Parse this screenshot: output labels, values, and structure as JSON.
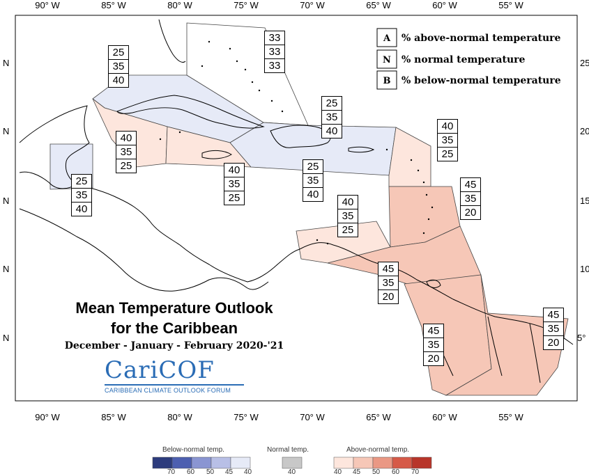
{
  "map": {
    "top_longitude_labels": [
      "90° W",
      "85° W",
      "80° W",
      "75° W",
      "70° W",
      "65° W",
      "60° W",
      "55° W"
    ],
    "bottom_longitude_labels": [
      "90° W",
      "85° W",
      "80° W",
      "75° W",
      "70° W",
      "65° W",
      "60° W",
      "55° W"
    ],
    "left_latitude_labels": [
      "N",
      "N",
      "N",
      "N",
      "N"
    ],
    "right_latitude_labels": [
      "25",
      "20",
      "15",
      "10",
      "5°"
    ]
  },
  "key": {
    "a_letter": "A",
    "a_text": "% above-normal temperature",
    "n_letter": "N",
    "n_text": "% normal temperature",
    "b_letter": "B",
    "b_text": "% below-normal temperature"
  },
  "colors": {
    "below_45_40": "#e6eaf7",
    "above_40_45": "#fde6dd",
    "above_45_50": "#f6c7b7",
    "above_50_60": "#ea9884",
    "above_60_70": "#d65a48",
    "above_70": "#b8352a",
    "below_70": "#2d3c7d",
    "below_60": "#4d5fb0",
    "below_50": "#8a95d2",
    "below_45": "#b8bfe6",
    "normal": "#c8c8c8"
  },
  "regions": [
    {
      "name": "bahamas",
      "a": "33",
      "n": "33",
      "b": "33"
    },
    {
      "name": "cuba",
      "a": "25",
      "n": "35",
      "b": "40"
    },
    {
      "name": "cayman",
      "a": "40",
      "n": "35",
      "b": "25"
    },
    {
      "name": "belize",
      "a": "25",
      "n": "35",
      "b": "40"
    },
    {
      "name": "jamaica",
      "a": "40",
      "n": "35",
      "b": "25"
    },
    {
      "name": "hispaniola-north",
      "a": "25",
      "n": "35",
      "b": "40"
    },
    {
      "name": "hispaniola-south",
      "a": "25",
      "n": "35",
      "b": "40"
    },
    {
      "name": "leeward-islands",
      "a": "40",
      "n": "35",
      "b": "25"
    },
    {
      "name": "windward-islands",
      "a": "45",
      "n": "35",
      "b": "20"
    },
    {
      "name": "abc-islands",
      "a": "40",
      "n": "35",
      "b": "25"
    },
    {
      "name": "trinidad",
      "a": "45",
      "n": "35",
      "b": "20"
    },
    {
      "name": "guyana",
      "a": "45",
      "n": "35",
      "b": "20"
    },
    {
      "name": "suriname-guiana",
      "a": "45",
      "n": "35",
      "b": "20"
    }
  ],
  "title": {
    "line1": "Mean Temperature Outlook",
    "line2": "for the Caribbean",
    "period": "December - January - February 2020-'21"
  },
  "logo": {
    "wordmark": "CariCOF",
    "tagline": "CARIBBEAN CLIMATE OUTLOOK FORUM"
  },
  "colorbar": {
    "below_title": "Below-normal temp.",
    "normal_title": "Normal temp.",
    "above_title": "Above-normal temp.",
    "below_ticks": [
      "70",
      "60",
      "50",
      "45",
      "40"
    ],
    "normal_tick": "40",
    "above_ticks": [
      "40",
      "45",
      "50",
      "60",
      "70"
    ]
  }
}
